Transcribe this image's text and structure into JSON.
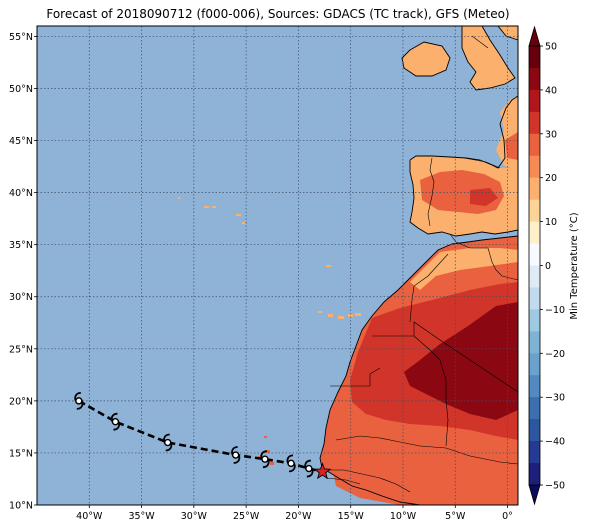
{
  "title": "Forecast of 2018090712 (f000-006), Sources: GDACS (TC track), GFS (Meteo)",
  "map": {
    "lon_range": [
      -45,
      1
    ],
    "lat_range": [
      10,
      56
    ],
    "ocean_color": "#8fb2d7",
    "lat_ticks": [
      {
        "value": 10,
        "label": "10°N"
      },
      {
        "value": 15,
        "label": "15°N"
      },
      {
        "value": 20,
        "label": "20°N"
      },
      {
        "value": 25,
        "label": "25°N"
      },
      {
        "value": 30,
        "label": "30°N"
      },
      {
        "value": 35,
        "label": "35°N"
      },
      {
        "value": 40,
        "label": "40°N"
      },
      {
        "value": 45,
        "label": "45°N"
      },
      {
        "value": 50,
        "label": "50°N"
      },
      {
        "value": 55,
        "label": "55°N"
      }
    ],
    "lon_ticks": [
      {
        "value": -40,
        "label": "40°W"
      },
      {
        "value": -35,
        "label": "35°W"
      },
      {
        "value": -30,
        "label": "30°W"
      },
      {
        "value": -25,
        "label": "25°W"
      },
      {
        "value": -20,
        "label": "20°W"
      },
      {
        "value": -15,
        "label": "15°W"
      },
      {
        "value": -10,
        "label": "10°W"
      },
      {
        "value": -5,
        "label": "5°W"
      },
      {
        "value": 0,
        "label": "0°"
      }
    ]
  },
  "track": {
    "points": [
      {
        "lon": -41,
        "lat": 20.0
      },
      {
        "lon": -37.5,
        "lat": 18.0
      },
      {
        "lon": -32.5,
        "lat": 16.0
      },
      {
        "lon": -26,
        "lat": 14.8
      },
      {
        "lon": -23.2,
        "lat": 14.4
      },
      {
        "lon": -20.7,
        "lat": 14.0
      },
      {
        "lon": -19.0,
        "lat": 13.5
      }
    ],
    "current_position": {
      "lon": -17.7,
      "lat": 13.2
    },
    "marker_color": "#e02020",
    "symbol_icon": "tropical-cyclone-icon"
  },
  "colorbar": {
    "label": "Min Temperature (°C)",
    "ticks": [
      "50",
      "40",
      "30",
      "20",
      "10",
      "0",
      "−10",
      "−20",
      "−30",
      "−40",
      "−50"
    ],
    "tick_values": [
      50,
      40,
      30,
      20,
      10,
      0,
      -10,
      -20,
      -30,
      -40,
      -50
    ],
    "bands": [
      {
        "from": 45,
        "to": 50,
        "color": "#67000d"
      },
      {
        "from": 40,
        "to": 45,
        "color": "#8b0812"
      },
      {
        "from": 35,
        "to": 40,
        "color": "#b2161b"
      },
      {
        "from": 30,
        "to": 35,
        "color": "#d1352a"
      },
      {
        "from": 25,
        "to": 30,
        "color": "#e9613f"
      },
      {
        "from": 20,
        "to": 25,
        "color": "#f58a55"
      },
      {
        "from": 15,
        "to": 20,
        "color": "#fbb06d"
      },
      {
        "from": 10,
        "to": 15,
        "color": "#fdd396"
      },
      {
        "from": 5,
        "to": 10,
        "color": "#fef0c8"
      },
      {
        "from": 0,
        "to": 5,
        "color": "#f7fbff"
      },
      {
        "from": -5,
        "to": 0,
        "color": "#deebf7"
      },
      {
        "from": -10,
        "to": -5,
        "color": "#c2daee"
      },
      {
        "from": -15,
        "to": -10,
        "color": "#9ecae1"
      },
      {
        "from": -20,
        "to": -15,
        "color": "#7fb3d6"
      },
      {
        "from": -25,
        "to": -20,
        "color": "#6aa1cf"
      },
      {
        "from": -30,
        "to": -25,
        "color": "#5189c0"
      },
      {
        "from": -35,
        "to": -30,
        "color": "#3b6fb0"
      },
      {
        "from": -40,
        "to": -35,
        "color": "#2c56a0"
      },
      {
        "from": -45,
        "to": -40,
        "color": "#253a92"
      },
      {
        "from": -50,
        "to": -45,
        "color": "#1c207a"
      }
    ],
    "extend_max_color": "#67000d",
    "extend_min_color": "#0d0a5a"
  }
}
